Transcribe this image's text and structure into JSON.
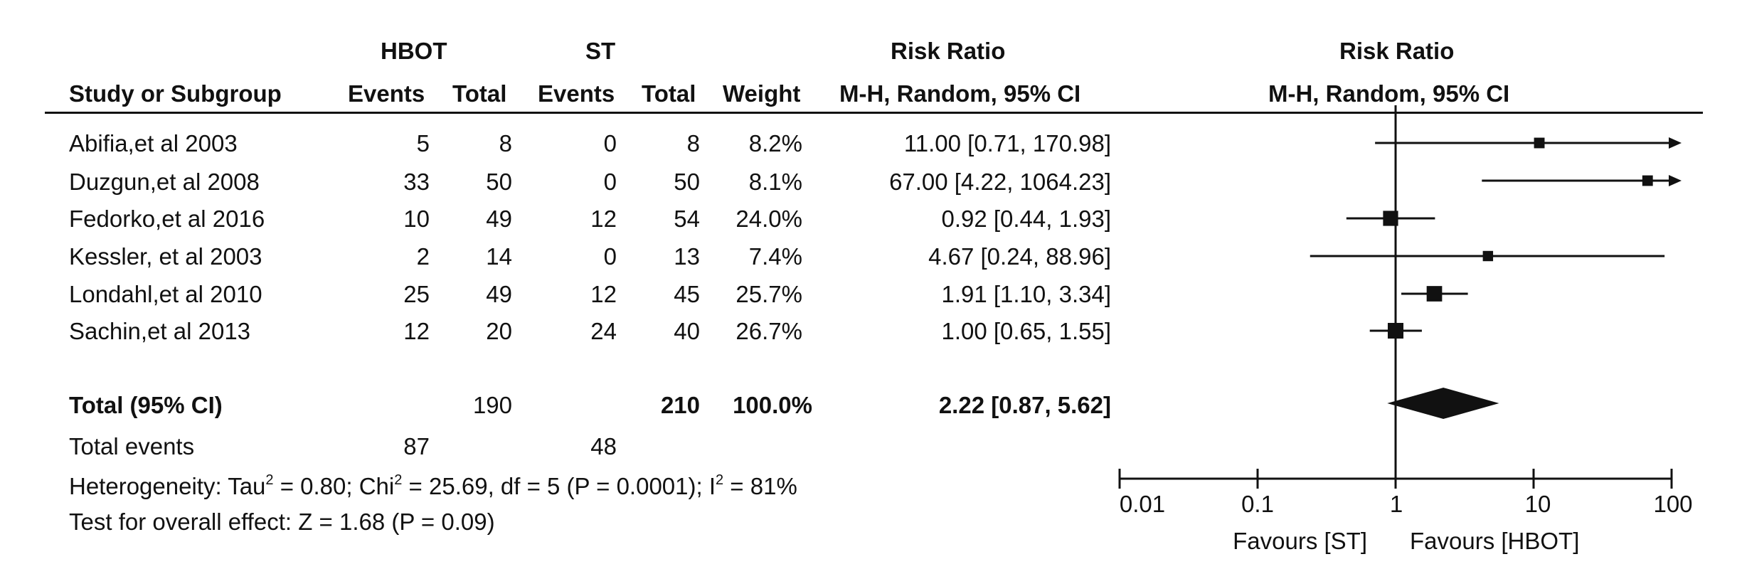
{
  "headers": {
    "group1": "HBOT",
    "group2": "ST",
    "rr_top": "Risk Ratio",
    "plot_top": "Risk Ratio",
    "study": "Study or Subgroup",
    "events1": "Events",
    "total1": "Total",
    "events2": "Events",
    "total2": "Total",
    "weight": "Weight",
    "rr_method": "M-H, Random, 95% CI",
    "plot_method": "M-H, Random, 95% CI"
  },
  "studies": [
    {
      "name": "Abifia,et al 2003",
      "e1": "5",
      "n1": "8",
      "e2": "0",
      "n2": "8",
      "weight": "8.2%",
      "rr_text": "11.00 [0.71, 170.98]"
    },
    {
      "name": "Duzgun,et al 2008",
      "e1": "33",
      "n1": "50",
      "e2": "0",
      "n2": "50",
      "weight": "8.1%",
      "rr_text": "67.00 [4.22, 1064.23]"
    },
    {
      "name": "Fedorko,et al 2016",
      "e1": "10",
      "n1": "49",
      "e2": "12",
      "n2": "54",
      "weight": "24.0%",
      "rr_text": "0.92 [0.44, 1.93]"
    },
    {
      "name": "Kessler, et al 2003",
      "e1": "2",
      "n1": "14",
      "e2": "0",
      "n2": "13",
      "weight": "7.4%",
      "rr_text": "4.67 [0.24, 88.96]"
    },
    {
      "name": "Londahl,et al 2010",
      "e1": "25",
      "n1": "49",
      "e2": "12",
      "n2": "45",
      "weight": "25.7%",
      "rr_text": "1.91 [1.10, 3.34]"
    },
    {
      "name": "Sachin,et al 2013",
      "e1": "12",
      "n1": "20",
      "e2": "24",
      "n2": "40",
      "weight": "26.7%",
      "rr_text": "1.00 [0.65, 1.55]"
    }
  ],
  "total": {
    "label": "Total (95% CI)",
    "n1": "190",
    "n2": "210",
    "weight": "100.0%",
    "rr_text": "2.22 [0.87, 5.62]"
  },
  "total_events": {
    "label": "Total events",
    "e1": "87",
    "e2": "48"
  },
  "heterogeneity": {
    "prefix": "Heterogeneity: Tau",
    "tau_sup": "2",
    "tau_rest": " = 0.80; Chi",
    "chi_sup": "2",
    "chi_rest": " = 25.69, df = 5 (P = 0.0001); I",
    "i_sup": "2",
    "i_rest": " = 81%"
  },
  "overall_effect": "Test for overall effect: Z = 1.68 (P = 0.09)",
  "axis": {
    "tick_labels": [
      "0.01",
      "0.1",
      "1",
      "10",
      "100"
    ],
    "favours_left": "Favours [ST]",
    "favours_right": "Favours [HBOT]"
  },
  "colors": {
    "ink": "#111111",
    "background": "#ffffff"
  },
  "chart_data": {
    "type": "forest",
    "scale": "log",
    "xlim": [
      0.01,
      100
    ],
    "null_line": 1,
    "ticks": [
      0.01,
      0.1,
      1,
      10,
      100
    ],
    "studies": [
      {
        "name": "Abifia,et al 2003",
        "rr": 11.0,
        "lo": 0.71,
        "hi": 170.98,
        "weight": 8.2
      },
      {
        "name": "Duzgun,et al 2008",
        "rr": 67.0,
        "lo": 4.22,
        "hi": 1064.23,
        "weight": 8.1
      },
      {
        "name": "Fedorko,et al 2016",
        "rr": 0.92,
        "lo": 0.44,
        "hi": 1.93,
        "weight": 24.0
      },
      {
        "name": "Kessler, et al 2003",
        "rr": 4.67,
        "lo": 0.24,
        "hi": 88.96,
        "weight": 7.4
      },
      {
        "name": "Londahl,et al 2010",
        "rr": 1.91,
        "lo": 1.1,
        "hi": 3.34,
        "weight": 25.7
      },
      {
        "name": "Sachin,et al 2013",
        "rr": 1.0,
        "lo": 0.65,
        "hi": 1.55,
        "weight": 26.7
      }
    ],
    "pooled": {
      "rr": 2.22,
      "lo": 0.87,
      "hi": 5.62
    }
  }
}
